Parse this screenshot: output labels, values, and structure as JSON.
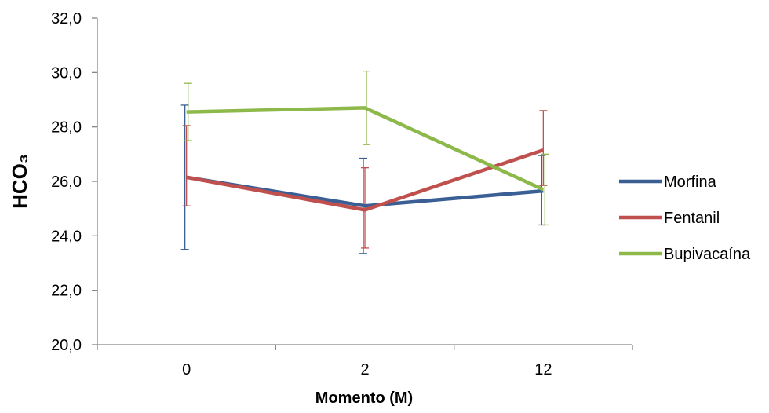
{
  "chart_data": {
    "type": "line",
    "title": "",
    "xlabel": "Momento (M)",
    "ylabel": "HCO₃",
    "categories": [
      "0",
      "2",
      "12"
    ],
    "ylim": [
      20,
      32
    ],
    "yticks": [
      "20,0",
      "22,0",
      "24,0",
      "26,0",
      "28,0",
      "30,0",
      "32,0"
    ],
    "grid": false,
    "legend_position": "right",
    "series": [
      {
        "name": "Morfina",
        "color": "#3a5f94",
        "values": [
          26.15,
          25.1,
          25.65
        ],
        "error_low": [
          23.5,
          23.35,
          24.4
        ],
        "error_high": [
          28.8,
          26.85,
          26.95
        ]
      },
      {
        "name": "Fentanil",
        "color": "#c0504d",
        "values": [
          26.15,
          24.95,
          27.15
        ],
        "error_low": [
          25.1,
          23.55,
          25.85
        ],
        "error_high": [
          28.05,
          26.5,
          28.6
        ]
      },
      {
        "name": "Bupivacaína",
        "color": "#8db84a",
        "values": [
          28.55,
          28.7,
          25.7
        ],
        "error_low": [
          27.5,
          27.35,
          24.4
        ],
        "error_high": [
          29.6,
          30.05,
          27.0
        ]
      }
    ]
  }
}
